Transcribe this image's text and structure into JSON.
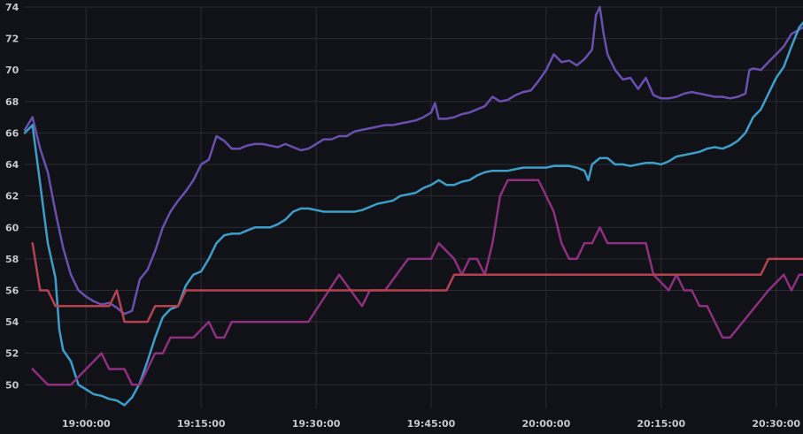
{
  "chart_data": {
    "type": "line",
    "title": "",
    "xlabel": "",
    "ylabel": "",
    "grid": true,
    "legend": "none",
    "xlim": [
      "18:52:00",
      "20:33:30"
    ],
    "ylim": [
      48.5,
      74
    ],
    "y_ticks": [
      50,
      52,
      54,
      56,
      58,
      60,
      62,
      64,
      66,
      68,
      70,
      72,
      74
    ],
    "x_ticks": [
      "19:00:00",
      "19:15:00",
      "19:30:00",
      "19:45:00",
      "20:00:00",
      "20:15:00",
      "20:30:00"
    ],
    "series": [
      {
        "color": "#6a4fb0",
        "points": [
          [
            "18:52:00",
            66.2
          ],
          [
            "18:53:00",
            67.0
          ],
          [
            "18:54:00",
            65.0
          ],
          [
            "18:55:00",
            63.5
          ],
          [
            "18:56:00",
            61.0
          ],
          [
            "18:57:00",
            58.7
          ],
          [
            "18:58:00",
            57.0
          ],
          [
            "18:59:00",
            56.0
          ],
          [
            "19:00:00",
            55.6
          ],
          [
            "19:01:00",
            55.3
          ],
          [
            "19:02:00",
            55.1
          ],
          [
            "19:03:00",
            55.2
          ],
          [
            "19:04:00",
            54.9
          ],
          [
            "19:05:00",
            54.5
          ],
          [
            "19:06:00",
            54.7
          ],
          [
            "19:07:00",
            56.7
          ],
          [
            "19:08:00",
            57.3
          ],
          [
            "19:09:00",
            58.5
          ],
          [
            "19:10:00",
            60.0
          ],
          [
            "19:11:00",
            61.0
          ],
          [
            "19:12:00",
            61.7
          ],
          [
            "19:13:00",
            62.3
          ],
          [
            "19:14:00",
            63.0
          ],
          [
            "19:15:00",
            64.0
          ],
          [
            "19:16:00",
            64.3
          ],
          [
            "19:17:00",
            65.8
          ],
          [
            "19:18:00",
            65.5
          ],
          [
            "19:19:00",
            65.0
          ],
          [
            "19:20:00",
            65.0
          ],
          [
            "19:21:00",
            65.2
          ],
          [
            "19:22:00",
            65.3
          ],
          [
            "19:23:00",
            65.3
          ],
          [
            "19:24:00",
            65.2
          ],
          [
            "19:25:00",
            65.1
          ],
          [
            "19:26:00",
            65.3
          ],
          [
            "19:27:00",
            65.1
          ],
          [
            "19:28:00",
            64.9
          ],
          [
            "19:29:00",
            65.0
          ],
          [
            "19:30:00",
            65.3
          ],
          [
            "19:31:00",
            65.6
          ],
          [
            "19:32:00",
            65.6
          ],
          [
            "19:33:00",
            65.8
          ],
          [
            "19:34:00",
            65.8
          ],
          [
            "19:35:00",
            66.1
          ],
          [
            "19:36:00",
            66.2
          ],
          [
            "19:37:00",
            66.3
          ],
          [
            "19:38:00",
            66.4
          ],
          [
            "19:39:00",
            66.5
          ],
          [
            "19:40:00",
            66.5
          ],
          [
            "19:41:00",
            66.6
          ],
          [
            "19:42:00",
            66.7
          ],
          [
            "19:43:00",
            66.8
          ],
          [
            "19:44:00",
            67.0
          ],
          [
            "19:45:00",
            67.3
          ],
          [
            "19:45:30",
            67.9
          ],
          [
            "19:46:00",
            66.9
          ],
          [
            "19:47:00",
            66.9
          ],
          [
            "19:48:00",
            67.0
          ],
          [
            "19:49:00",
            67.2
          ],
          [
            "19:50:00",
            67.3
          ],
          [
            "19:51:00",
            67.5
          ],
          [
            "19:52:00",
            67.7
          ],
          [
            "19:53:00",
            68.3
          ],
          [
            "19:54:00",
            68.0
          ],
          [
            "19:55:00",
            68.1
          ],
          [
            "19:56:00",
            68.4
          ],
          [
            "19:57:00",
            68.6
          ],
          [
            "19:58:00",
            68.7
          ],
          [
            "19:59:00",
            69.3
          ],
          [
            "20:00:00",
            70.0
          ],
          [
            "20:01:00",
            71.0
          ],
          [
            "20:02:00",
            70.5
          ],
          [
            "20:03:00",
            70.6
          ],
          [
            "20:04:00",
            70.3
          ],
          [
            "20:05:00",
            70.7
          ],
          [
            "20:06:00",
            71.3
          ],
          [
            "20:06:30",
            73.5
          ],
          [
            "20:07:00",
            74.0
          ],
          [
            "20:07:30",
            72.3
          ],
          [
            "20:08:00",
            71.0
          ],
          [
            "20:09:00",
            70.0
          ],
          [
            "20:10:00",
            69.4
          ],
          [
            "20:11:00",
            69.5
          ],
          [
            "20:12:00",
            68.8
          ],
          [
            "20:13:00",
            69.5
          ],
          [
            "20:14:00",
            68.4
          ],
          [
            "20:15:00",
            68.2
          ],
          [
            "20:16:00",
            68.2
          ],
          [
            "20:17:00",
            68.3
          ],
          [
            "20:18:00",
            68.5
          ],
          [
            "20:19:00",
            68.6
          ],
          [
            "20:20:00",
            68.5
          ],
          [
            "20:21:00",
            68.4
          ],
          [
            "20:22:00",
            68.3
          ],
          [
            "20:23:00",
            68.3
          ],
          [
            "20:24:00",
            68.2
          ],
          [
            "20:25:00",
            68.3
          ],
          [
            "20:26:00",
            68.5
          ],
          [
            "20:26:30",
            70.0
          ],
          [
            "20:27:00",
            70.1
          ],
          [
            "20:28:00",
            70.0
          ],
          [
            "20:29:00",
            70.5
          ],
          [
            "20:30:00",
            71.0
          ],
          [
            "20:31:00",
            71.5
          ],
          [
            "20:32:00",
            72.3
          ],
          [
            "20:33:30",
            72.7
          ]
        ]
      },
      {
        "color": "#3d9fc9",
        "points": [
          [
            "18:52:00",
            66.0
          ],
          [
            "18:53:00",
            66.5
          ],
          [
            "18:54:00",
            62.8
          ],
          [
            "18:55:00",
            59.0
          ],
          [
            "18:56:00",
            56.8
          ],
          [
            "18:56:30",
            53.5
          ],
          [
            "18:57:00",
            52.2
          ],
          [
            "18:58:00",
            51.5
          ],
          [
            "18:59:00",
            50.0
          ],
          [
            "19:00:00",
            49.7
          ],
          [
            "19:01:00",
            49.4
          ],
          [
            "19:02:00",
            49.3
          ],
          [
            "19:03:00",
            49.1
          ],
          [
            "19:04:00",
            49.0
          ],
          [
            "19:05:00",
            48.7
          ],
          [
            "19:06:00",
            49.2
          ],
          [
            "19:07:00",
            50.1
          ],
          [
            "19:08:00",
            51.5
          ],
          [
            "19:09:00",
            53.0
          ],
          [
            "19:10:00",
            54.3
          ],
          [
            "19:11:00",
            54.8
          ],
          [
            "19:12:00",
            55.0
          ],
          [
            "19:13:00",
            56.3
          ],
          [
            "19:14:00",
            57.0
          ],
          [
            "19:15:00",
            57.2
          ],
          [
            "19:16:00",
            58.0
          ],
          [
            "19:17:00",
            59.0
          ],
          [
            "19:18:00",
            59.5
          ],
          [
            "19:19:00",
            59.6
          ],
          [
            "19:20:00",
            59.6
          ],
          [
            "19:21:00",
            59.8
          ],
          [
            "19:22:00",
            60.0
          ],
          [
            "19:23:00",
            60.0
          ],
          [
            "19:24:00",
            60.0
          ],
          [
            "19:25:00",
            60.2
          ],
          [
            "19:26:00",
            60.5
          ],
          [
            "19:27:00",
            61.0
          ],
          [
            "19:28:00",
            61.2
          ],
          [
            "19:29:00",
            61.2
          ],
          [
            "19:30:00",
            61.1
          ],
          [
            "19:31:00",
            61.0
          ],
          [
            "19:32:00",
            61.0
          ],
          [
            "19:33:00",
            61.0
          ],
          [
            "19:34:00",
            61.0
          ],
          [
            "19:35:00",
            61.0
          ],
          [
            "19:36:00",
            61.1
          ],
          [
            "19:37:00",
            61.3
          ],
          [
            "19:38:00",
            61.5
          ],
          [
            "19:39:00",
            61.6
          ],
          [
            "19:40:00",
            61.7
          ],
          [
            "19:41:00",
            62.0
          ],
          [
            "19:42:00",
            62.1
          ],
          [
            "19:43:00",
            62.2
          ],
          [
            "19:44:00",
            62.5
          ],
          [
            "19:45:00",
            62.7
          ],
          [
            "19:46:00",
            63.0
          ],
          [
            "19:47:00",
            62.7
          ],
          [
            "19:48:00",
            62.7
          ],
          [
            "19:49:00",
            62.9
          ],
          [
            "19:50:00",
            63.0
          ],
          [
            "19:51:00",
            63.3
          ],
          [
            "19:52:00",
            63.5
          ],
          [
            "19:53:00",
            63.6
          ],
          [
            "19:54:00",
            63.6
          ],
          [
            "19:55:00",
            63.6
          ],
          [
            "19:56:00",
            63.7
          ],
          [
            "19:57:00",
            63.8
          ],
          [
            "19:58:00",
            63.8
          ],
          [
            "19:59:00",
            63.8
          ],
          [
            "20:00:00",
            63.8
          ],
          [
            "20:01:00",
            63.9
          ],
          [
            "20:02:00",
            63.9
          ],
          [
            "20:03:00",
            63.9
          ],
          [
            "20:04:00",
            63.8
          ],
          [
            "20:05:00",
            63.6
          ],
          [
            "20:05:30",
            63.0
          ],
          [
            "20:06:00",
            64.0
          ],
          [
            "20:07:00",
            64.4
          ],
          [
            "20:08:00",
            64.4
          ],
          [
            "20:09:00",
            64.0
          ],
          [
            "20:10:00",
            64.0
          ],
          [
            "20:11:00",
            63.9
          ],
          [
            "20:12:00",
            64.0
          ],
          [
            "20:13:00",
            64.1
          ],
          [
            "20:14:00",
            64.1
          ],
          [
            "20:15:00",
            64.0
          ],
          [
            "20:16:00",
            64.2
          ],
          [
            "20:17:00",
            64.5
          ],
          [
            "20:18:00",
            64.6
          ],
          [
            "20:19:00",
            64.7
          ],
          [
            "20:20:00",
            64.8
          ],
          [
            "20:21:00",
            65.0
          ],
          [
            "20:22:00",
            65.1
          ],
          [
            "20:23:00",
            65.0
          ],
          [
            "20:24:00",
            65.2
          ],
          [
            "20:25:00",
            65.5
          ],
          [
            "20:26:00",
            66.0
          ],
          [
            "20:27:00",
            67.0
          ],
          [
            "20:28:00",
            67.5
          ],
          [
            "20:29:00",
            68.5
          ],
          [
            "20:30:00",
            69.5
          ],
          [
            "20:31:00",
            70.2
          ],
          [
            "20:32:00",
            71.5
          ],
          [
            "20:33:00",
            72.7
          ],
          [
            "20:33:30",
            73.0
          ]
        ]
      },
      {
        "color": "#8e2f7f",
        "points": [
          [
            "18:53:00",
            51.0
          ],
          [
            "18:55:00",
            50.0
          ],
          [
            "18:58:00",
            50.0
          ],
          [
            "19:00:00",
            51.0
          ],
          [
            "19:02:00",
            52.0
          ],
          [
            "19:03:00",
            51.0
          ],
          [
            "19:05:00",
            51.0
          ],
          [
            "19:06:00",
            50.0
          ],
          [
            "19:07:00",
            50.0
          ],
          [
            "19:09:00",
            52.0
          ],
          [
            "19:10:00",
            52.0
          ],
          [
            "19:11:00",
            53.0
          ],
          [
            "19:14:00",
            53.0
          ],
          [
            "19:16:00",
            54.0
          ],
          [
            "19:17:00",
            53.0
          ],
          [
            "19:18:00",
            53.0
          ],
          [
            "19:19:00",
            54.0
          ],
          [
            "19:29:00",
            54.0
          ],
          [
            "19:33:00",
            57.0
          ],
          [
            "19:36:00",
            55.0
          ],
          [
            "19:37:00",
            56.0
          ],
          [
            "19:39:00",
            56.0
          ],
          [
            "19:42:00",
            58.0
          ],
          [
            "19:45:00",
            58.0
          ],
          [
            "19:46:00",
            59.0
          ],
          [
            "19:48:00",
            58.0
          ],
          [
            "19:49:00",
            57.0
          ],
          [
            "19:50:00",
            58.0
          ],
          [
            "19:51:00",
            58.0
          ],
          [
            "19:52:00",
            57.0
          ],
          [
            "19:53:00",
            59.0
          ],
          [
            "19:54:00",
            62.0
          ],
          [
            "19:55:00",
            63.0
          ],
          [
            "19:59:00",
            63.0
          ],
          [
            "20:01:00",
            61.0
          ],
          [
            "20:02:00",
            59.0
          ],
          [
            "20:03:00",
            58.0
          ],
          [
            "20:04:00",
            58.0
          ],
          [
            "20:05:00",
            59.0
          ],
          [
            "20:06:00",
            59.0
          ],
          [
            "20:07:00",
            60.0
          ],
          [
            "20:08:00",
            59.0
          ],
          [
            "20:13:00",
            59.0
          ],
          [
            "20:14:00",
            57.0
          ],
          [
            "20:16:00",
            56.0
          ],
          [
            "20:17:00",
            57.0
          ],
          [
            "20:18:00",
            56.0
          ],
          [
            "20:19:00",
            56.0
          ],
          [
            "20:20:00",
            55.0
          ],
          [
            "20:21:00",
            55.0
          ],
          [
            "20:23:00",
            53.0
          ],
          [
            "20:24:00",
            53.0
          ],
          [
            "20:29:00",
            56.0
          ],
          [
            "20:31:00",
            57.0
          ],
          [
            "20:32:00",
            56.0
          ],
          [
            "20:33:00",
            57.0
          ],
          [
            "20:33:30",
            57.0
          ]
        ]
      },
      {
        "color": "#b5434f",
        "points": [
          [
            "18:53:00",
            59.0
          ],
          [
            "18:54:00",
            56.0
          ],
          [
            "18:55:00",
            56.0
          ],
          [
            "18:56:00",
            55.0
          ],
          [
            "19:03:00",
            55.0
          ],
          [
            "19:04:00",
            56.0
          ],
          [
            "19:05:00",
            54.0
          ],
          [
            "19:08:00",
            54.0
          ],
          [
            "19:09:00",
            55.0
          ],
          [
            "19:12:00",
            55.0
          ],
          [
            "19:13:00",
            56.0
          ],
          [
            "19:47:00",
            56.0
          ],
          [
            "19:48:00",
            57.0
          ],
          [
            "20:28:00",
            57.0
          ],
          [
            "20:29:00",
            58.0
          ],
          [
            "20:33:30",
            58.0
          ]
        ]
      }
    ]
  }
}
